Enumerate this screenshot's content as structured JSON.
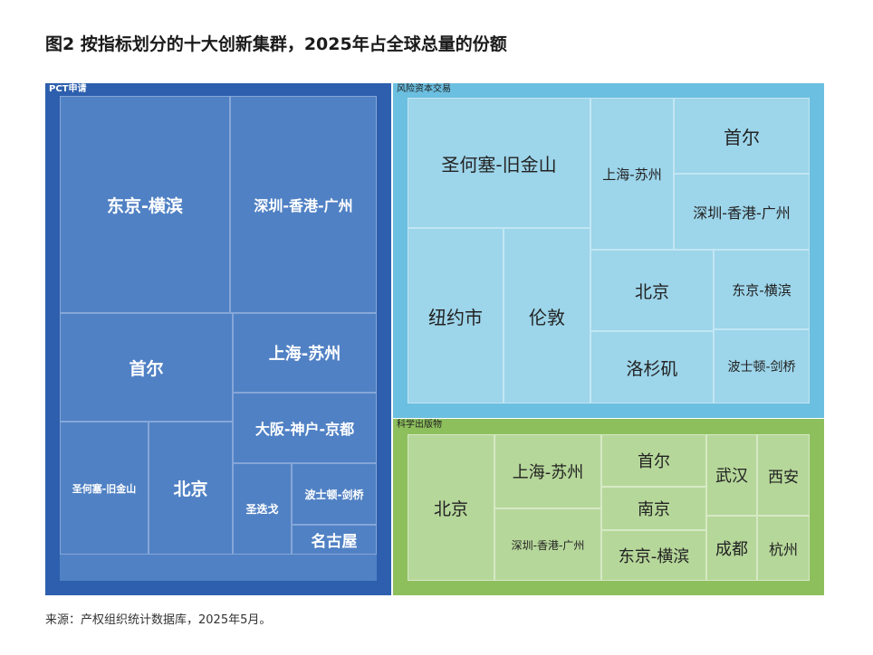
{
  "title": "图2 按指标划分的十大创新集群，2025年占全球总量的份额",
  "source": "来源：产权组织统计数据库，2025年5月。",
  "chart_data": {
    "type": "treemap",
    "panels": [
      {
        "name": "PCT申请",
        "colors": {
          "frame": "#2d5fae",
          "cell": "#5081c4",
          "border": "#86a6d8",
          "text": "#ffffff",
          "label": "#ffffff"
        },
        "items": [
          "东京-横滨",
          "深圳-香港-广州",
          "首尔",
          "上海-苏州",
          "大阪-神户-京都",
          "圣何塞-旧金山",
          "北京",
          "圣迭戈",
          "波士顿-剑桥",
          "名古屋"
        ]
      },
      {
        "name": "风险资本交易",
        "colors": {
          "frame": "#6bbfe0",
          "cell": "#9dd5ea",
          "border": "#c2e6f3",
          "text": "#222222",
          "label": "#222222"
        },
        "items": [
          "圣何塞-旧金山",
          "上海-苏州",
          "首尔",
          "深圳-香港-广州",
          "纽约市",
          "伦敦",
          "北京",
          "东京-横滨",
          "洛杉矶",
          "波士顿-剑桥"
        ]
      },
      {
        "name": "科学出版物",
        "colors": {
          "frame": "#8dbf5c",
          "cell": "#b6d79a",
          "border": "#d6e9c5",
          "text": "#222222",
          "label": "#222222"
        },
        "items": [
          "北京",
          "上海-苏州",
          "深圳-香港-广州",
          "首尔",
          "南京",
          "东京-横滨",
          "武汉",
          "西安",
          "成都",
          "杭州"
        ]
      }
    ]
  }
}
